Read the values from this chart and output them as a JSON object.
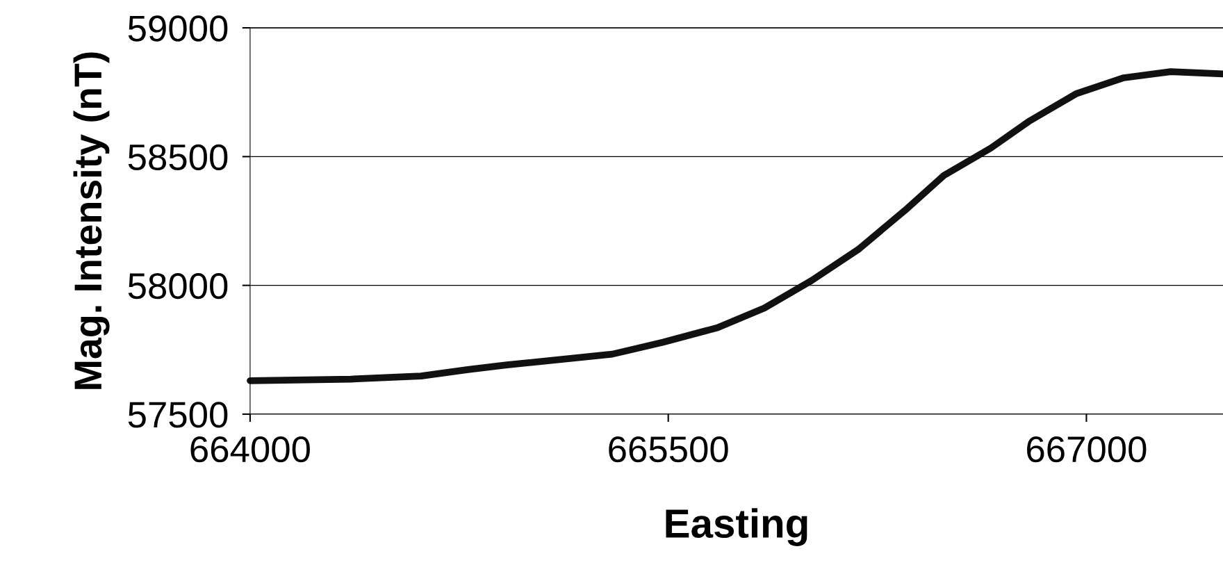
{
  "chart_data": {
    "type": "line",
    "xlabel": "Easting",
    "ylabel": "Mag. Intensity (nT)",
    "xlim": [
      664000,
      667490
    ],
    "xticks": [
      664000,
      665500,
      667000
    ],
    "ylim": [
      57500,
      59000
    ],
    "yticks": [
      57500,
      58000,
      58500,
      59000
    ],
    "grid": "y",
    "line_style": "solid",
    "marker": "none",
    "series": [
      {
        "color": "#111111",
        "x": [
          664000,
          664361,
          664613,
          664781,
          664921,
          665299,
          665481,
          665677,
          665845,
          666013,
          666181,
          666349,
          666489,
          666657,
          666797,
          666965,
          667134,
          667302,
          667490
        ],
        "values": [
          57630,
          57636,
          57648,
          57673,
          57691,
          57733,
          57779,
          57836,
          57912,
          58018,
          58139,
          58291,
          58427,
          58533,
          58639,
          58745,
          58806,
          58830,
          58821
        ]
      }
    ]
  }
}
